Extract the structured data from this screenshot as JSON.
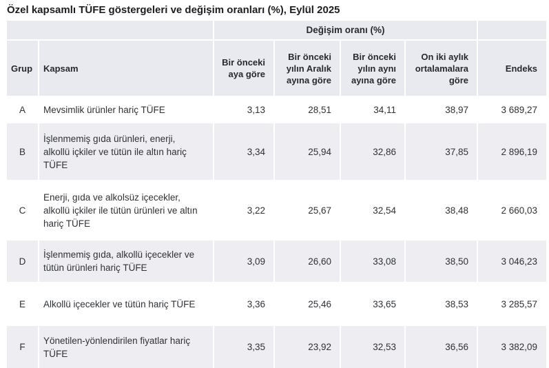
{
  "title": "Özel kapsamlı TÜFE göstergeleri ve değişim oranları (%), Eylül 2025",
  "colors": {
    "header_bg": "#e9eaef",
    "stripe_bg": "#ededf2",
    "text": "#2b2f34"
  },
  "table": {
    "span_header": "Değişim oranı (%)",
    "columns": {
      "grup": "Grup",
      "kapsam": "Kapsam",
      "monthly": "Bir önceki\naya göre",
      "from_december": "Bir önceki\nyılın Aralık\nayına göre",
      "same_month_prev_year": "Bir önceki\nyılın aynı\nayına göre",
      "twelve_month_avg": "On iki aylık\nortalamalara\ngöre",
      "endeks": "Endeks"
    },
    "rows": [
      {
        "grup": "A",
        "kapsam": "Mevsimlik ürünler hariç TÜFE",
        "monthly": "3,13",
        "from_december": "28,51",
        "same_month_prev_year": "34,11",
        "twelve_month_avg": "38,97",
        "endeks": "3 689,27"
      },
      {
        "grup": "B",
        "kapsam": "İşlenmemiş gıda ürünleri, enerji, alkollü içkiler ve tütün ile altın hariç TÜFE",
        "monthly": "3,34",
        "from_december": "25,94",
        "same_month_prev_year": "32,86",
        "twelve_month_avg": "37,85",
        "endeks": "2 896,19"
      },
      {
        "grup": "C",
        "kapsam": "Enerji, gıda ve alkolsüz içecekler, alkollü içkiler ile tütün ürünleri ve altın hariç TÜFE",
        "monthly": "3,22",
        "from_december": "25,67",
        "same_month_prev_year": "32,54",
        "twelve_month_avg": "38,48",
        "endeks": "2 660,03"
      },
      {
        "grup": "D",
        "kapsam": "İşlenmemiş gıda, alkollü içecekler ve tütün ürünleri hariç TÜFE",
        "monthly": "3,09",
        "from_december": "26,60",
        "same_month_prev_year": "33,08",
        "twelve_month_avg": "38,50",
        "endeks": "3 046,23"
      },
      {
        "grup": "E",
        "kapsam": "Alkollü içecekler ve tütün hariç TÜFE",
        "monthly": "3,36",
        "from_december": "25,46",
        "same_month_prev_year": "33,65",
        "twelve_month_avg": "38,53",
        "endeks": "3 285,57"
      },
      {
        "grup": "F",
        "kapsam": "Yönetilen-yönlendirilen fiyatlar hariç TÜFE",
        "monthly": "3,35",
        "from_december": "23,92",
        "same_month_prev_year": "32,53",
        "twelve_month_avg": "36,56",
        "endeks": "3 382,09"
      }
    ]
  }
}
